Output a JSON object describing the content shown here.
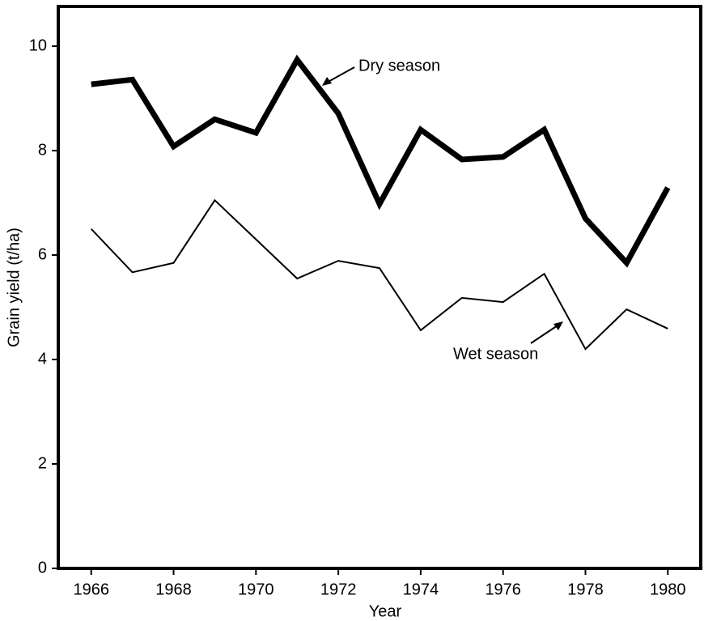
{
  "chart_data": {
    "type": "line",
    "x_label": "Year",
    "y_label": "Grain yield (t/ha)",
    "x": [
      1966,
      1967,
      1968,
      1969,
      1970,
      1971,
      1972,
      1973,
      1974,
      1975,
      1976,
      1977,
      1978,
      1979,
      1980
    ],
    "series": [
      {
        "name": "Dry season",
        "color": "#000000",
        "line_width": 7,
        "values": [
          9.27,
          9.36,
          8.08,
          8.6,
          8.34,
          9.74,
          8.71,
          6.98,
          8.4,
          7.83,
          7.88,
          8.4,
          6.7,
          5.85,
          7.29
        ]
      },
      {
        "name": "Wet season",
        "color": "#000000",
        "line_width": 2,
        "values": [
          6.5,
          5.67,
          5.85,
          7.05,
          6.3,
          5.55,
          5.89,
          5.75,
          4.56,
          5.18,
          5.1,
          5.64,
          4.2,
          4.96,
          4.59
        ]
      }
    ],
    "xlim": [
      1965.2,
      1980.8
    ],
    "xticks": [
      1966,
      1968,
      1970,
      1972,
      1974,
      1976,
      1978,
      1980
    ],
    "ylim": [
      0,
      10.76
    ],
    "yticks": [
      0,
      2,
      4,
      6,
      8,
      10
    ],
    "grid": false
  }
}
